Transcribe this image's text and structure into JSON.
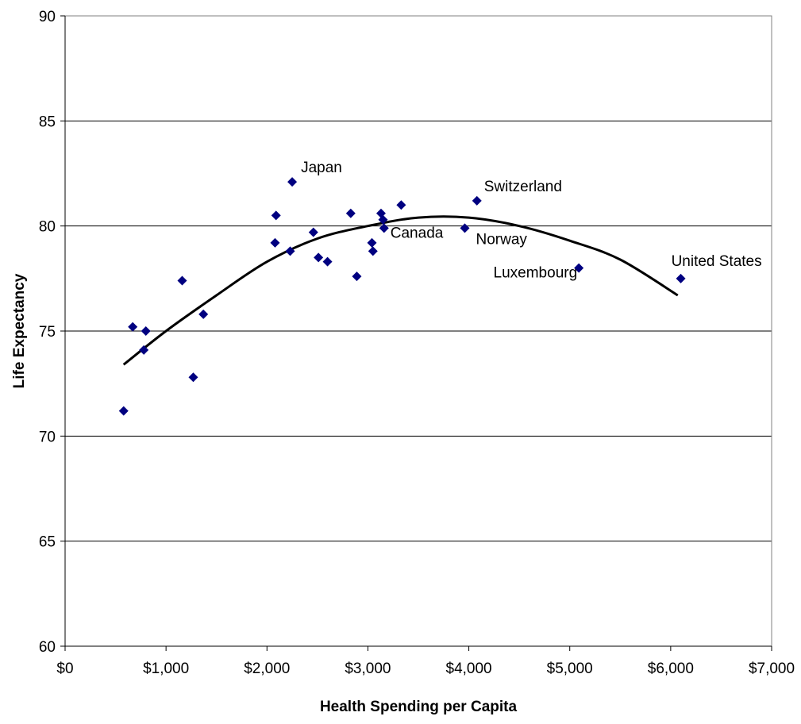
{
  "chart_data": {
    "type": "scatter",
    "title": "",
    "xlabel": "Health Spending per Capita",
    "ylabel": "Life Expectancy",
    "xlim": [
      0,
      7000
    ],
    "ylim": [
      60,
      90
    ],
    "x_ticks": [
      0,
      1000,
      2000,
      3000,
      4000,
      5000,
      6000,
      7000
    ],
    "x_tick_labels": [
      "$0",
      "$1,000",
      "$2,000",
      "$3,000",
      "$4,000",
      "$5,000",
      "$6,000",
      "$7,000"
    ],
    "y_ticks": [
      60,
      65,
      70,
      75,
      80,
      85,
      90
    ],
    "y_tick_labels": [
      "60",
      "65",
      "70",
      "75",
      "80",
      "85",
      "90"
    ],
    "grid": "horizontal",
    "legend": "none",
    "marker_color": "#000080",
    "trend_color": "#000000",
    "points": [
      {
        "x": 580,
        "y": 71.2
      },
      {
        "x": 670,
        "y": 75.2
      },
      {
        "x": 780,
        "y": 74.1
      },
      {
        "x": 800,
        "y": 75.0
      },
      {
        "x": 1160,
        "y": 77.4
      },
      {
        "x": 1270,
        "y": 72.8
      },
      {
        "x": 1370,
        "y": 75.8
      },
      {
        "x": 2080,
        "y": 79.2
      },
      {
        "x": 2090,
        "y": 80.5
      },
      {
        "x": 2230,
        "y": 78.8
      },
      {
        "x": 2250,
        "y": 82.1,
        "label": "Japan"
      },
      {
        "x": 2460,
        "y": 79.7
      },
      {
        "x": 2510,
        "y": 78.5
      },
      {
        "x": 2600,
        "y": 78.3
      },
      {
        "x": 2830,
        "y": 80.6
      },
      {
        "x": 2890,
        "y": 77.6
      },
      {
        "x": 3040,
        "y": 79.2
      },
      {
        "x": 3050,
        "y": 78.8
      },
      {
        "x": 3130,
        "y": 80.6
      },
      {
        "x": 3150,
        "y": 80.3
      },
      {
        "x": 3160,
        "y": 79.9,
        "label": "Canada"
      },
      {
        "x": 3330,
        "y": 81.0
      },
      {
        "x": 3960,
        "y": 79.9,
        "label": "Norway"
      },
      {
        "x": 4080,
        "y": 81.2,
        "label": "Switzerland"
      },
      {
        "x": 5090,
        "y": 78.0,
        "label": "Luxembourg"
      },
      {
        "x": 6100,
        "y": 77.5,
        "label": "United States"
      }
    ],
    "trendline": {
      "type": "polynomial",
      "order": 2,
      "x": [
        580,
        1000,
        1500,
        2000,
        2500,
        3000,
        3500,
        4000,
        4500,
        5000,
        5500,
        6070
      ],
      "y": [
        73.4,
        75.0,
        76.7,
        78.3,
        79.4,
        80.0,
        80.4,
        80.4,
        80.0,
        79.3,
        78.4,
        76.7
      ]
    }
  }
}
